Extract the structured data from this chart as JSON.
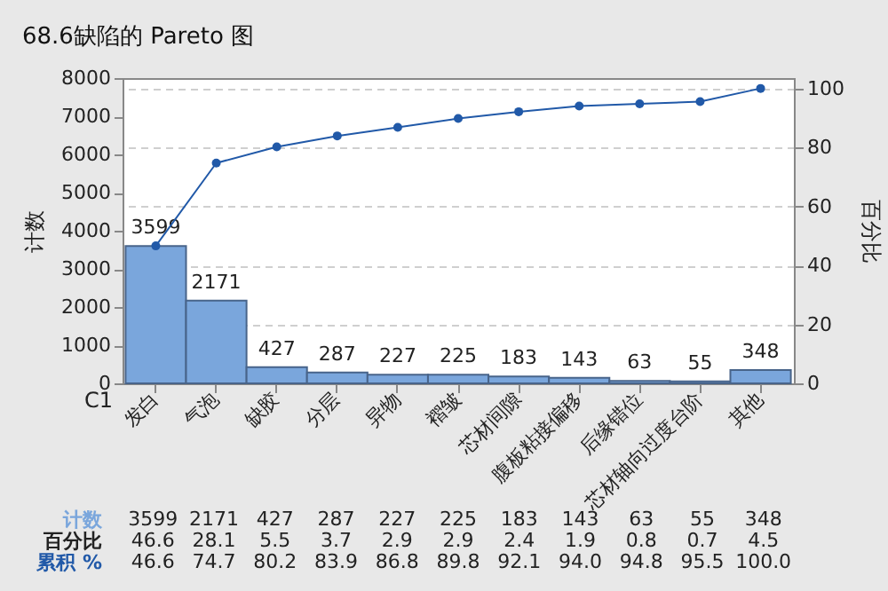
{
  "chart_data": {
    "type": "bar",
    "title": "68.6缺陷的 Pareto 图",
    "xlabel": "C1",
    "ylabel": "计数",
    "y2label": "百分比",
    "categories": [
      "发白",
      "气泡",
      "缺胶",
      "分层",
      "异物",
      "褶皱",
      "芯材间隙",
      "腹板粘接偏移",
      "后缘错位",
      "芯材轴向过度台阶",
      "其他"
    ],
    "series": [
      {
        "name": "计数",
        "color": "#7aa6dc",
        "values": [
          3599,
          2171,
          427,
          287,
          227,
          225,
          183,
          143,
          63,
          55,
          348
        ],
        "value_labels": [
          "3599",
          "2171",
          "427",
          "287",
          "227",
          "225",
          "183",
          "143",
          "63",
          "55",
          "348"
        ]
      },
      {
        "name": "累积 %",
        "type": "line",
        "axis": "y2",
        "color": "#2159a8",
        "values": [
          46.6,
          74.7,
          80.2,
          83.9,
          86.8,
          89.8,
          92.1,
          94.0,
          94.8,
          95.5,
          100.0
        ],
        "value_labels": [
          "46.6",
          "74.7",
          "80.2",
          "83.9",
          "86.8",
          "89.8",
          "92.1",
          "94.0",
          "94.8",
          "95.5",
          "100.0"
        ]
      }
    ],
    "annotations": [
      "百分比",
      "46.6",
      "28.1",
      "5.5",
      "3.7",
      "2.9",
      "2.9",
      "2.4",
      "1.9",
      "0.8",
      "0.7",
      "4.5"
    ],
    "ylim": [
      0,
      8000
    ],
    "yticks": [
      0,
      1000,
      2000,
      3000,
      4000,
      5000,
      6000,
      7000,
      8000
    ],
    "y2lim": [
      0,
      103.5
    ],
    "y2ticks": [
      0,
      20,
      40,
      60,
      80,
      100
    ],
    "grid": "y",
    "data_labels": true,
    "marker": "circle"
  }
}
